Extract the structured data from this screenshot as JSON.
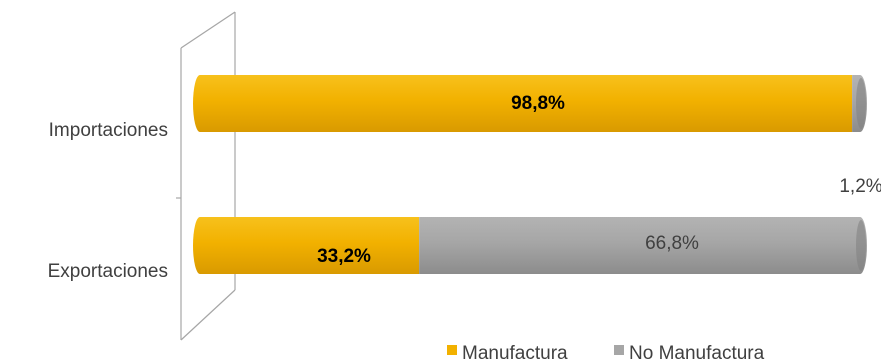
{
  "chart_data": {
    "type": "bar",
    "orientation": "horizontal",
    "stacked": true,
    "categories": [
      "Importaciones",
      "Exportaciones"
    ],
    "series": [
      {
        "name": "Manufactura",
        "values": [
          98.8,
          33.2
        ],
        "color": "#F2B100",
        "labels": [
          "98,8%",
          "33,2%"
        ]
      },
      {
        "name": "No Manufactura",
        "values": [
          1.2,
          66.8
        ],
        "color": "#A6A6A6",
        "labels": [
          "1,2%",
          "66,8%"
        ]
      }
    ],
    "xlim": [
      0,
      100
    ],
    "grid": false,
    "legend_position": "bottom-right"
  }
}
